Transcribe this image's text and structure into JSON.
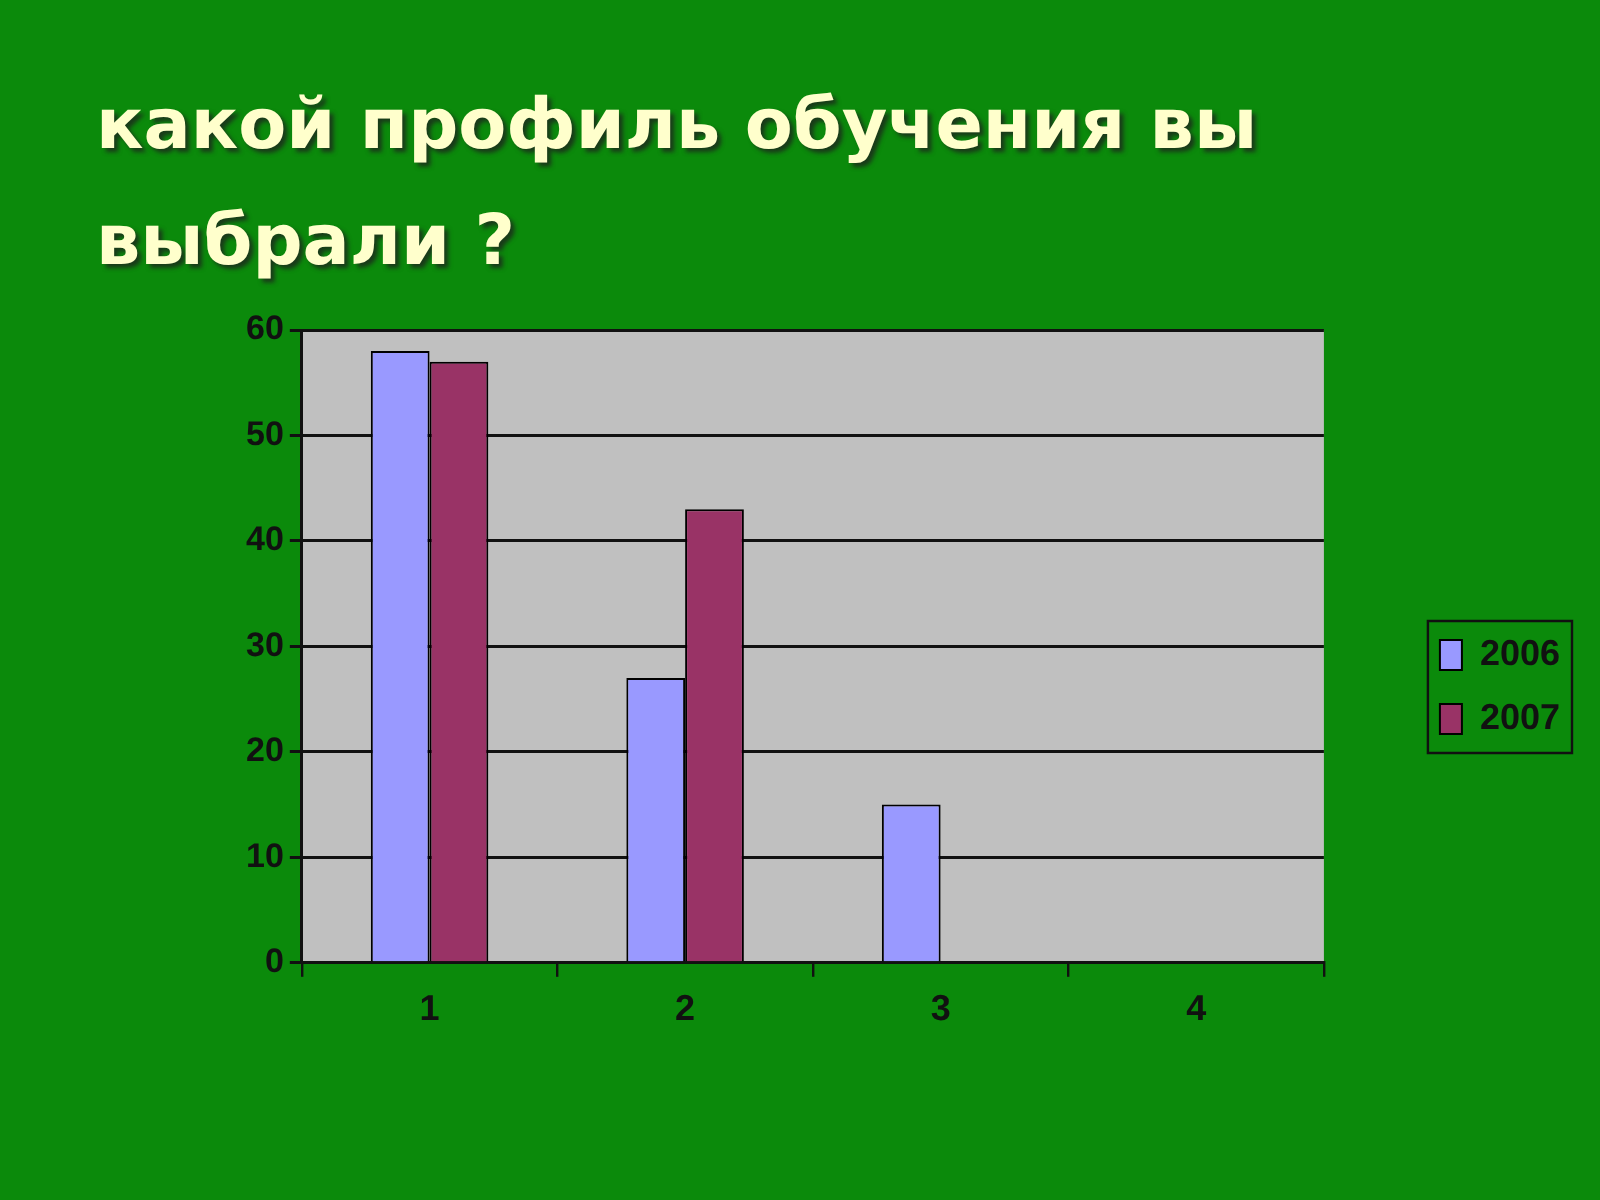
{
  "chart_data": {
    "type": "bar",
    "title": "какой профиль обучения вы выбрали ?",
    "categories": [
      "1",
      "2",
      "3",
      "4"
    ],
    "series": [
      {
        "name": "2006",
        "color": "#9999ff",
        "values": [
          58,
          27,
          15,
          0
        ]
      },
      {
        "name": "2007",
        "color": "#993366",
        "values": [
          57,
          43,
          0,
          0
        ]
      }
    ],
    "ylim": [
      0,
      60
    ],
    "yticks": [
      0,
      10,
      20,
      30,
      40,
      50,
      60
    ],
    "grid": "y",
    "legend": "right"
  }
}
